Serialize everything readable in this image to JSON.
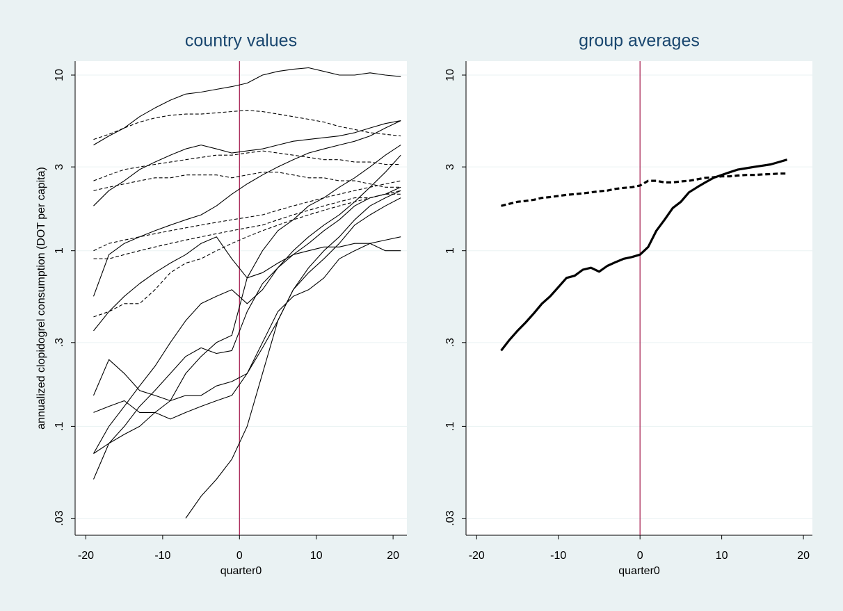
{
  "chart_data": [
    {
      "type": "line",
      "title": "country values",
      "xlabel": "quarter0",
      "ylabel": "annualized clopidogrel consumption (DOT per capita)",
      "log_y": true,
      "grid": true,
      "xline": 0,
      "xline_color": "#a3174a",
      "xlim": [
        -21.4,
        21.8
      ],
      "ylim": [
        0.024,
        12
      ],
      "xticks": [
        -20,
        -10,
        0,
        10,
        20
      ],
      "yticks": [
        10,
        3,
        1,
        {
          "value": 0.3,
          "label": ".3"
        },
        {
          "value": 0.1,
          "label": ".1"
        },
        {
          "value": 0.03,
          "label": ".03"
        }
      ],
      "x": [
        -19,
        -17,
        -15,
        -13,
        -11,
        -9,
        -7,
        -5,
        -3,
        -1,
        1,
        3,
        5,
        7,
        9,
        11,
        13,
        15,
        17,
        19,
        21
      ],
      "series": [
        {
          "color": "#000000",
          "style": "solid",
          "values": [
            4.0,
            4.5,
            5.0,
            5.8,
            6.5,
            7.2,
            7.8,
            8.0,
            8.3,
            8.6,
            9.0,
            10,
            10.5,
            10.8,
            11,
            10.5,
            10,
            10,
            10.3,
            10,
            9.8
          ]
        },
        {
          "color": "#000000",
          "style": "solid",
          "values": [
            1.8,
            2.2,
            2.5,
            2.9,
            3.2,
            3.5,
            3.8,
            4.0,
            3.8,
            3.6,
            3.7,
            3.8,
            4.0,
            4.2,
            4.3,
            4.4,
            4.5,
            4.7,
            5.0,
            5.3,
            5.5
          ]
        },
        {
          "color": "#000000",
          "style": "solid",
          "values": [
            0.55,
            0.95,
            1.1,
            1.2,
            1.3,
            1.4,
            1.5,
            1.6,
            1.8,
            2.1,
            2.4,
            2.7,
            3.0,
            3.3,
            3.6,
            3.8,
            4.0,
            4.2,
            4.5,
            5.0,
            5.5
          ]
        },
        {
          "color": "#000000",
          "style": "solid",
          "values": [
            0.35,
            0.45,
            0.55,
            0.65,
            0.75,
            0.85,
            0.95,
            1.1,
            1.2,
            0.9,
            0.7,
            0.75,
            0.85,
            0.95,
            1.0,
            1.05,
            1.05,
            1.1,
            1.1,
            1.15,
            1.2
          ]
        },
        {
          "color": "#000000",
          "style": "solid",
          "values": [
            0.07,
            0.1,
            0.13,
            0.17,
            0.22,
            0.3,
            0.4,
            0.5,
            0.55,
            0.6,
            0.5,
            0.6,
            0.8,
            1.0,
            1.2,
            1.4,
            1.6,
            1.9,
            2.3,
            2.8,
            3.5
          ]
        },
        {
          "color": "#000000",
          "style": "solid",
          "values": [
            0.05,
            0.08,
            0.1,
            0.13,
            0.16,
            0.2,
            0.25,
            0.28,
            0.26,
            0.27,
            0.45,
            0.65,
            0.8,
            0.95,
            1.1,
            1.3,
            1.5,
            1.8,
            2.0,
            2.1,
            2.3
          ]
        },
        {
          "color": "#000000",
          "style": "solid",
          "values": [
            0.15,
            0.24,
            0.2,
            0.16,
            0.15,
            0.14,
            0.15,
            0.15,
            0.17,
            0.18,
            0.2,
            0.28,
            0.4,
            0.6,
            0.75,
            0.9,
            1.1,
            1.4,
            1.6,
            1.8,
            2.0
          ]
        },
        {
          "color": "#000000",
          "style": "solid",
          "values": [
            0.12,
            0.13,
            0.14,
            0.12,
            0.12,
            0.11,
            0.12,
            0.13,
            0.14,
            0.15,
            0.2,
            0.3,
            0.45,
            0.55,
            0.6,
            0.7,
            0.9,
            1.0,
            1.1,
            1.0,
            1.0
          ]
        },
        {
          "color": "#000000",
          "style": "solid",
          "values": [
            null,
            null,
            null,
            null,
            null,
            null,
            0.03,
            0.04,
            0.05,
            0.065,
            0.1,
            0.2,
            0.4,
            0.6,
            0.8,
            1.0,
            1.2,
            1.5,
            1.8,
            2.0,
            2.2
          ]
        },
        {
          "color": "#000000",
          "style": "solid",
          "values": [
            0.07,
            0.08,
            0.09,
            0.1,
            0.12,
            0.14,
            0.2,
            0.25,
            0.3,
            0.33,
            0.7,
            1.0,
            1.3,
            1.5,
            1.8,
            2.0,
            2.3,
            2.6,
            3.0,
            3.5,
            4.0
          ]
        },
        {
          "color": "#000000",
          "style": "dashed",
          "values": [
            4.3,
            4.6,
            5.0,
            5.4,
            5.7,
            5.9,
            6.0,
            6.0,
            6.1,
            6.2,
            6.3,
            6.2,
            6.0,
            5.8,
            5.6,
            5.4,
            5.1,
            4.9,
            4.7,
            4.6,
            4.5
          ]
        },
        {
          "color": "#000000",
          "style": "dashed",
          "values": [
            2.5,
            2.7,
            2.9,
            3.0,
            3.1,
            3.2,
            3.3,
            3.4,
            3.5,
            3.5,
            3.6,
            3.7,
            3.6,
            3.5,
            3.4,
            3.3,
            3.3,
            3.2,
            3.2,
            3.1,
            3.1
          ]
        },
        {
          "color": "#000000",
          "style": "dashed",
          "values": [
            2.2,
            2.3,
            2.4,
            2.5,
            2.6,
            2.6,
            2.7,
            2.7,
            2.7,
            2.6,
            2.7,
            2.8,
            2.8,
            2.7,
            2.6,
            2.6,
            2.5,
            2.5,
            2.4,
            2.3,
            2.3
          ]
        },
        {
          "color": "#000000",
          "style": "dashed",
          "values": [
            1.0,
            1.1,
            1.15,
            1.2,
            1.25,
            1.3,
            1.35,
            1.4,
            1.45,
            1.5,
            1.55,
            1.6,
            1.7,
            1.8,
            1.9,
            2.0,
            2.1,
            2.2,
            2.3,
            2.4,
            2.5
          ]
        },
        {
          "color": "#000000",
          "style": "dashed",
          "values": [
            0.9,
            0.9,
            0.95,
            1.0,
            1.05,
            1.1,
            1.15,
            1.2,
            1.25,
            1.3,
            1.35,
            1.4,
            1.5,
            1.6,
            1.7,
            1.8,
            1.9,
            2.0,
            2.0,
            2.1,
            2.1
          ]
        },
        {
          "color": "#000000",
          "style": "dashed",
          "values": [
            0.42,
            0.45,
            0.5,
            0.5,
            0.6,
            0.75,
            0.85,
            0.9,
            1.0,
            1.1,
            1.2,
            1.3,
            1.4,
            1.5,
            1.6,
            1.7,
            1.8,
            1.9,
            2.0,
            2.1,
            2.2
          ]
        }
      ]
    },
    {
      "type": "line",
      "title": "group averages",
      "xlabel": "quarter0",
      "log_y": true,
      "grid": true,
      "xline": 0,
      "xline_color": "#a3174a",
      "xlim": [
        -21.3,
        21.1
      ],
      "ylim": [
        0.024,
        12
      ],
      "xticks": [
        -20,
        -10,
        0,
        10,
        20
      ],
      "yticks": [
        10,
        3,
        1,
        {
          "value": 0.3,
          "label": ".3"
        },
        {
          "value": 0.1,
          "label": ".1"
        },
        {
          "value": 0.03,
          "label": ".03"
        }
      ],
      "x": [
        -17,
        -16,
        -15,
        -14,
        -13,
        -12,
        -11,
        -10,
        -9,
        -8,
        -7,
        -6,
        -5,
        -4,
        -3,
        -2,
        -1,
        0,
        1,
        2,
        3,
        4,
        5,
        6,
        7,
        8,
        9,
        10,
        11,
        12,
        13,
        14,
        15,
        16,
        17,
        18
      ],
      "series": [
        {
          "color": "#000000",
          "style": "solid",
          "values": [
            0.27,
            0.31,
            0.35,
            0.39,
            0.44,
            0.5,
            0.55,
            0.62,
            0.7,
            0.72,
            0.78,
            0.8,
            0.76,
            0.82,
            0.86,
            0.9,
            0.92,
            0.95,
            1.05,
            1.3,
            1.5,
            1.75,
            1.9,
            2.15,
            2.3,
            2.45,
            2.6,
            2.7,
            2.8,
            2.9,
            2.95,
            3.0,
            3.05,
            3.1,
            3.2,
            3.3
          ]
        },
        {
          "color": "#000000",
          "style": "dashed",
          "values": [
            1.8,
            1.85,
            1.9,
            1.92,
            1.95,
            2.0,
            2.02,
            2.05,
            2.08,
            2.1,
            2.12,
            2.15,
            2.18,
            2.2,
            2.25,
            2.28,
            2.3,
            2.35,
            2.5,
            2.5,
            2.45,
            2.45,
            2.48,
            2.5,
            2.55,
            2.6,
            2.62,
            2.65,
            2.65,
            2.68,
            2.7,
            2.7,
            2.72,
            2.73,
            2.75,
            2.75
          ]
        }
      ]
    }
  ]
}
